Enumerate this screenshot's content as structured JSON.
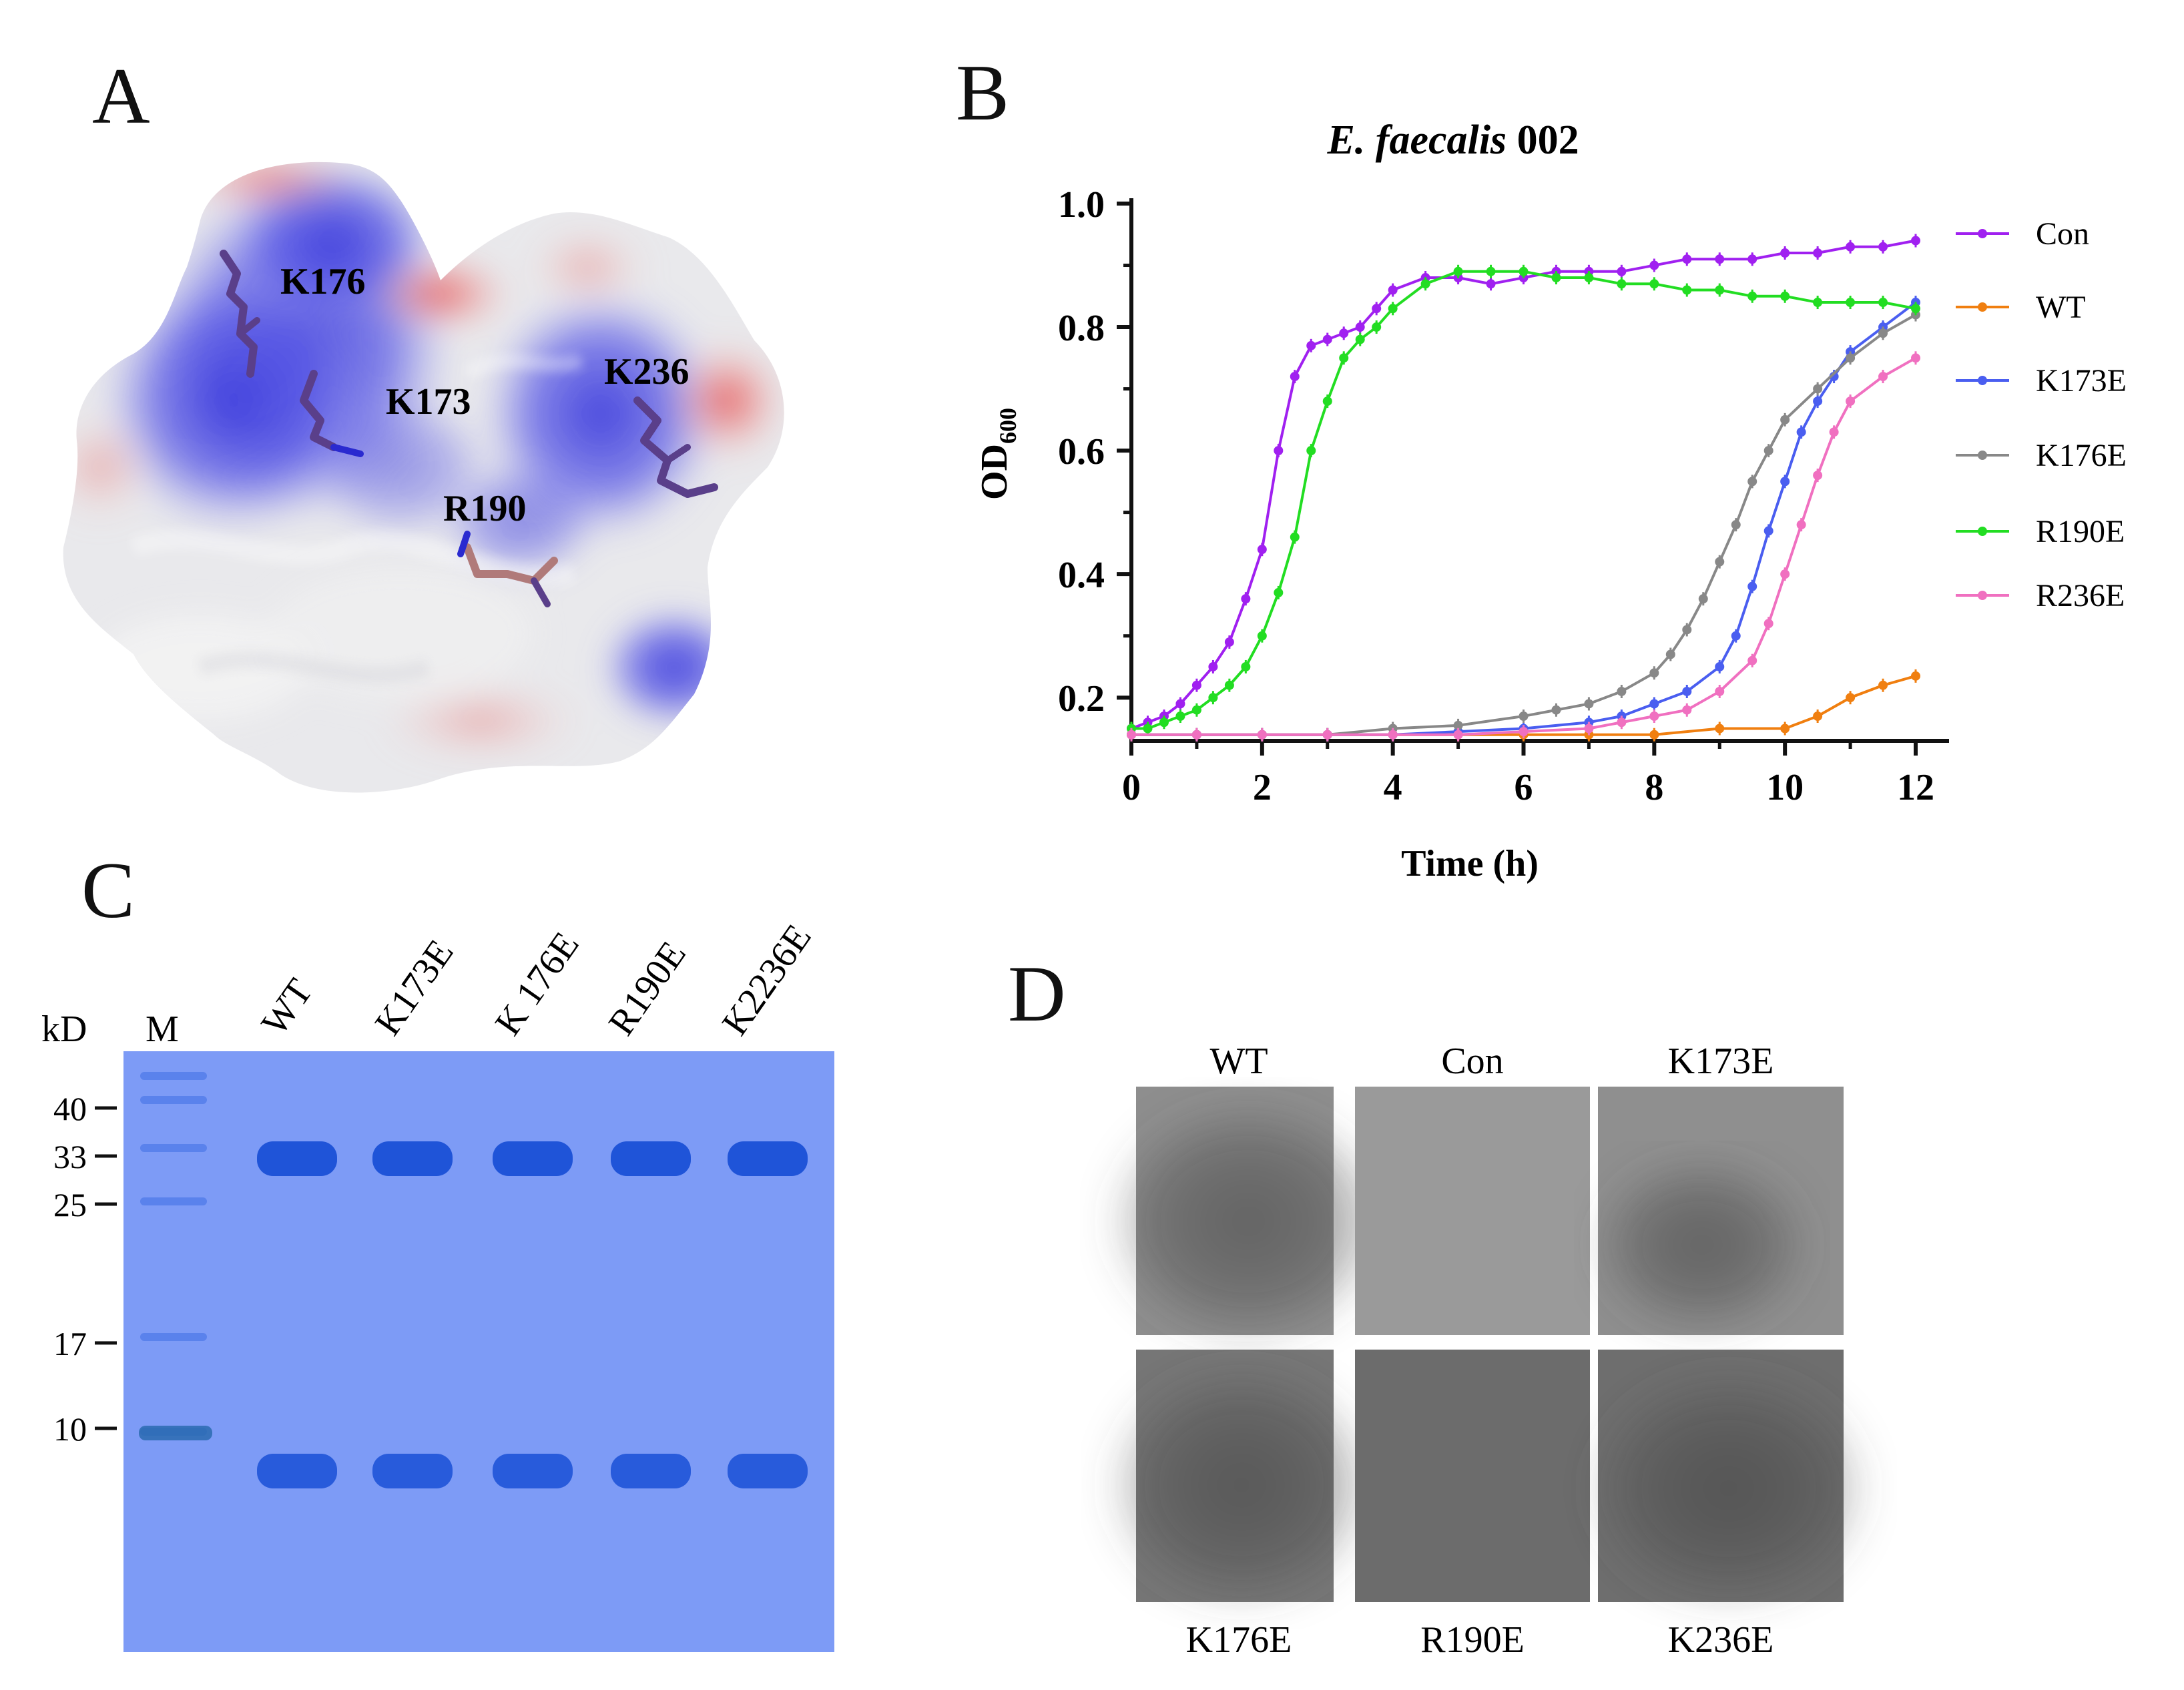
{
  "panels": {
    "a": "A",
    "b": "B",
    "c": "C",
    "d": "D"
  },
  "panel_a": {
    "residue_labels": [
      "K176",
      "K173",
      "K236",
      "R190"
    ]
  },
  "chart_data": {
    "type": "line",
    "title_italic": "E. faecalis",
    "title_rest": " 002",
    "xlabel": "Time (h)",
    "ylabel_main": "OD",
    "ylabel_sub": "600",
    "xlim": [
      0,
      12
    ],
    "ylim": [
      0.13,
      1.0
    ],
    "xticks": [
      0,
      2,
      4,
      6,
      8,
      10,
      12
    ],
    "yticks": [
      0.2,
      0.4,
      0.6,
      0.8,
      1.0
    ],
    "ytick_labels": [
      "0.2",
      "0.4",
      "0.6",
      "0.8",
      "1.0"
    ],
    "legend_position": "right",
    "series": [
      {
        "name": "Con",
        "color": "#a020f0",
        "x": [
          0,
          0.25,
          0.5,
          0.75,
          1,
          1.25,
          1.5,
          1.75,
          2,
          2.25,
          2.5,
          2.75,
          3,
          3.25,
          3.5,
          3.75,
          4,
          4.5,
          5,
          5.5,
          6,
          6.5,
          7,
          7.5,
          8,
          8.5,
          9,
          9.5,
          10,
          10.5,
          11,
          11.5,
          12
        ],
        "y": [
          0.15,
          0.16,
          0.17,
          0.19,
          0.22,
          0.25,
          0.29,
          0.36,
          0.44,
          0.6,
          0.72,
          0.77,
          0.78,
          0.79,
          0.8,
          0.83,
          0.86,
          0.88,
          0.88,
          0.87,
          0.88,
          0.89,
          0.89,
          0.89,
          0.9,
          0.91,
          0.91,
          0.91,
          0.92,
          0.92,
          0.93,
          0.93,
          0.94
        ]
      },
      {
        "name": "WT",
        "color": "#f07f10",
        "x": [
          0,
          1,
          2,
          3,
          4,
          5,
          6,
          7,
          8,
          9,
          10,
          10.5,
          11,
          11.5,
          12
        ],
        "y": [
          0.14,
          0.14,
          0.14,
          0.14,
          0.14,
          0.14,
          0.14,
          0.14,
          0.14,
          0.15,
          0.15,
          0.17,
          0.2,
          0.22,
          0.235
        ]
      },
      {
        "name": "K173E",
        "color": "#4a5ef0",
        "x": [
          0,
          1,
          2,
          3,
          4,
          5,
          6,
          7,
          7.5,
          8,
          8.5,
          9,
          9.25,
          9.5,
          9.75,
          10,
          10.25,
          10.5,
          10.75,
          11,
          11.5,
          12
        ],
        "y": [
          0.14,
          0.14,
          0.14,
          0.14,
          0.14,
          0.145,
          0.15,
          0.16,
          0.17,
          0.19,
          0.21,
          0.25,
          0.3,
          0.38,
          0.47,
          0.55,
          0.63,
          0.68,
          0.72,
          0.76,
          0.8,
          0.84
        ]
      },
      {
        "name": "K176E",
        "color": "#888888",
        "x": [
          0,
          1,
          2,
          3,
          4,
          5,
          6,
          6.5,
          7,
          7.5,
          8,
          8.25,
          8.5,
          8.75,
          9,
          9.25,
          9.5,
          9.75,
          10,
          10.5,
          11,
          11.5,
          12
        ],
        "y": [
          0.14,
          0.14,
          0.14,
          0.14,
          0.15,
          0.155,
          0.17,
          0.18,
          0.19,
          0.21,
          0.24,
          0.27,
          0.31,
          0.36,
          0.42,
          0.48,
          0.55,
          0.6,
          0.65,
          0.7,
          0.75,
          0.79,
          0.82
        ]
      },
      {
        "name": "R190E",
        "color": "#22dd22",
        "x": [
          0,
          0.25,
          0.5,
          0.75,
          1,
          1.25,
          1.5,
          1.75,
          2,
          2.25,
          2.5,
          2.75,
          3,
          3.25,
          3.5,
          3.75,
          4,
          4.5,
          5,
          5.5,
          6,
          6.5,
          7,
          7.5,
          8,
          8.5,
          9,
          9.5,
          10,
          10.5,
          11,
          11.5,
          12
        ],
        "y": [
          0.15,
          0.15,
          0.16,
          0.17,
          0.18,
          0.2,
          0.22,
          0.25,
          0.3,
          0.37,
          0.46,
          0.6,
          0.68,
          0.75,
          0.78,
          0.8,
          0.83,
          0.87,
          0.89,
          0.89,
          0.89,
          0.88,
          0.88,
          0.87,
          0.87,
          0.86,
          0.86,
          0.85,
          0.85,
          0.84,
          0.84,
          0.84,
          0.83
        ]
      },
      {
        "name": "R236E",
        "color": "#f070c0",
        "x": [
          0,
          1,
          2,
          3,
          4,
          5,
          6,
          7,
          7.5,
          8,
          8.5,
          9,
          9.5,
          9.75,
          10,
          10.25,
          10.5,
          10.75,
          11,
          11.5,
          12
        ],
        "y": [
          0.14,
          0.14,
          0.14,
          0.14,
          0.14,
          0.14,
          0.145,
          0.15,
          0.16,
          0.17,
          0.18,
          0.21,
          0.26,
          0.32,
          0.4,
          0.48,
          0.56,
          0.63,
          0.68,
          0.72,
          0.75
        ]
      }
    ]
  },
  "panel_c": {
    "kd_label": "kD",
    "marker_label": "M",
    "lane_labels": [
      "WT",
      "K173E",
      "K 176E",
      "R190E",
      "K2236E"
    ],
    "marker_kd": [
      "40",
      "33",
      "25",
      "17",
      "10"
    ],
    "gel_color": "#7d9bf6",
    "band_color": "#1f54d8"
  },
  "panel_d": {
    "top_labels": [
      "WT",
      "Con",
      "K173E"
    ],
    "bottom_labels": [
      "K176E",
      "R190E",
      "K236E"
    ]
  }
}
